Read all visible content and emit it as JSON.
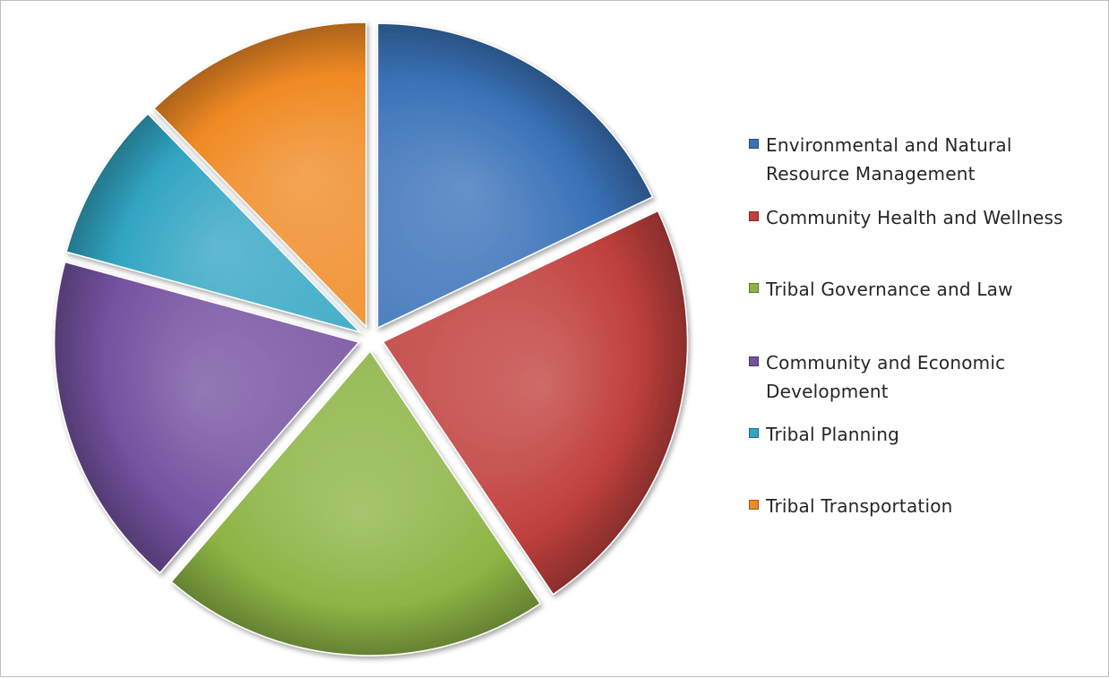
{
  "chart_data": {
    "type": "pie",
    "title": "",
    "slices": [
      {
        "label": "Environmental and Natural Resource Management",
        "value": 19,
        "color": "#3a72b8"
      },
      {
        "label": "Community Health and Wellness",
        "value": 24,
        "color": "#c0403d"
      },
      {
        "label": "Tribal Governance and Law",
        "value": 22,
        "color": "#8db445"
      },
      {
        "label": "Community and Economic Development",
        "value": 19,
        "color": "#7452a0"
      },
      {
        "label": "Tribal Planning",
        "value": 9,
        "color": "#32a5c3"
      },
      {
        "label": "Tribal Transportation",
        "value": 13,
        "color": "#f08a24"
      }
    ],
    "legend_position": "right",
    "exploded": true,
    "start_angle_deg": 0,
    "direction": "clockwise"
  }
}
